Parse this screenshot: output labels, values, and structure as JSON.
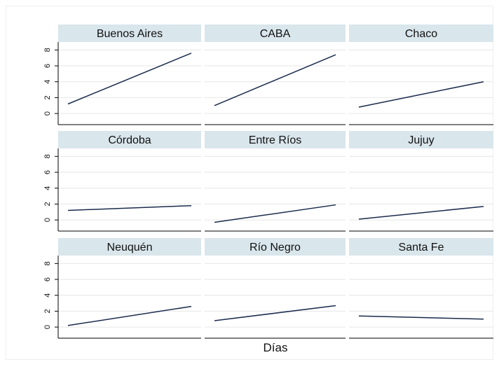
{
  "xlabel": "Días",
  "chart_data": [
    {
      "type": "line",
      "title": "Buenos Aires",
      "categories": [
        null,
        null
      ],
      "values": [
        1.2,
        7.6
      ],
      "color": "#1a2b4c",
      "ylim": [
        -1.4,
        9
      ],
      "yticks": [
        0,
        2,
        4,
        6,
        8
      ],
      "grid": true
    },
    {
      "type": "line",
      "title": "CABA",
      "categories": [
        null,
        null
      ],
      "values": [
        1.0,
        7.4
      ],
      "color": "#1a2b4c",
      "ylim": [
        -1.4,
        9
      ],
      "yticks": [
        0,
        2,
        4,
        6,
        8
      ],
      "grid": true
    },
    {
      "type": "line",
      "title": "Chaco",
      "categories": [
        null,
        null
      ],
      "values": [
        0.8,
        4.0
      ],
      "color": "#1a2b4c",
      "ylim": [
        -1.4,
        9
      ],
      "yticks": [
        0,
        2,
        4,
        6,
        8
      ],
      "grid": true
    },
    {
      "type": "line",
      "title": "Córdoba",
      "categories": [
        null,
        null
      ],
      "values": [
        1.2,
        1.8
      ],
      "color": "#1a2b4c",
      "ylim": [
        -1.4,
        9
      ],
      "yticks": [
        0,
        2,
        4,
        6,
        8
      ],
      "grid": true
    },
    {
      "type": "line",
      "title": "Entre Ríos",
      "categories": [
        null,
        null
      ],
      "values": [
        -0.3,
        1.9
      ],
      "color": "#1a2b4c",
      "ylim": [
        -1.4,
        9
      ],
      "yticks": [
        0,
        2,
        4,
        6,
        8
      ],
      "grid": true
    },
    {
      "type": "line",
      "title": "Jujuy",
      "categories": [
        null,
        null
      ],
      "values": [
        0.1,
        1.7
      ],
      "color": "#1a2b4c",
      "ylim": [
        -1.4,
        9
      ],
      "yticks": [
        0,
        2,
        4,
        6,
        8
      ],
      "grid": true
    },
    {
      "type": "line",
      "title": "Neuquén",
      "categories": [
        null,
        null
      ],
      "values": [
        0.2,
        2.6
      ],
      "color": "#1a2b4c",
      "ylim": [
        -1.4,
        9
      ],
      "yticks": [
        0,
        2,
        4,
        6,
        8
      ],
      "grid": true
    },
    {
      "type": "line",
      "title": "Río Negro",
      "categories": [
        null,
        null
      ],
      "values": [
        0.8,
        2.7
      ],
      "color": "#1a2b4c",
      "ylim": [
        -1.4,
        9
      ],
      "yticks": [
        0,
        2,
        4,
        6,
        8
      ],
      "grid": true
    },
    {
      "type": "line",
      "title": "Santa Fe",
      "categories": [
        null,
        null
      ],
      "values": [
        1.4,
        1.0
      ],
      "color": "#1a2b4c",
      "ylim": [
        -1.4,
        9
      ],
      "yticks": [
        0,
        2,
        4,
        6,
        8
      ],
      "grid": true
    }
  ]
}
